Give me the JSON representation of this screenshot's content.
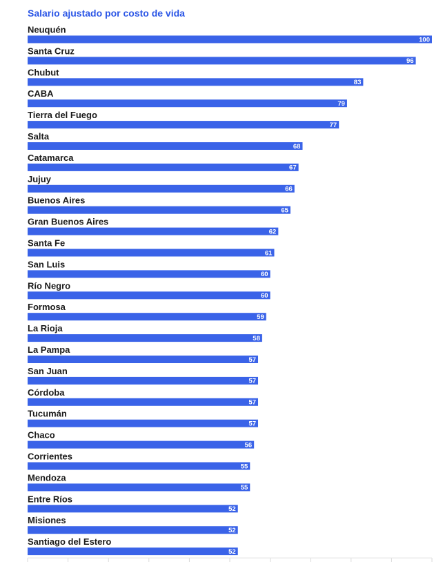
{
  "chart_data": {
    "type": "bar",
    "orientation": "horizontal",
    "title": "Salario ajustado por costo de vida",
    "xlabel": "",
    "ylabel": "",
    "xlim": [
      0,
      100
    ],
    "grid": true,
    "bar_color": "#3a63e8",
    "title_color": "#2b56e6",
    "categories": [
      "Neuquén",
      "Santa Cruz",
      "Chubut",
      "CABA",
      "Tierra del Fuego",
      "Salta",
      "Catamarca",
      "Jujuy",
      "Buenos Aires",
      "Gran Buenos Aires",
      "Santa Fe",
      "San Luis",
      "Río Negro",
      "Formosa",
      "La Rioja",
      "La Pampa",
      "San Juan",
      "Córdoba",
      "Tucumán",
      "Chaco",
      "Corrientes",
      "Mendoza",
      "Entre Ríos",
      "Misiones",
      "Santiago del Estero"
    ],
    "values": [
      100,
      96,
      83,
      79,
      77,
      68,
      67,
      66,
      65,
      62,
      61,
      60,
      60,
      59,
      58,
      57,
      57,
      57,
      57,
      56,
      55,
      55,
      52,
      52,
      52
    ]
  }
}
